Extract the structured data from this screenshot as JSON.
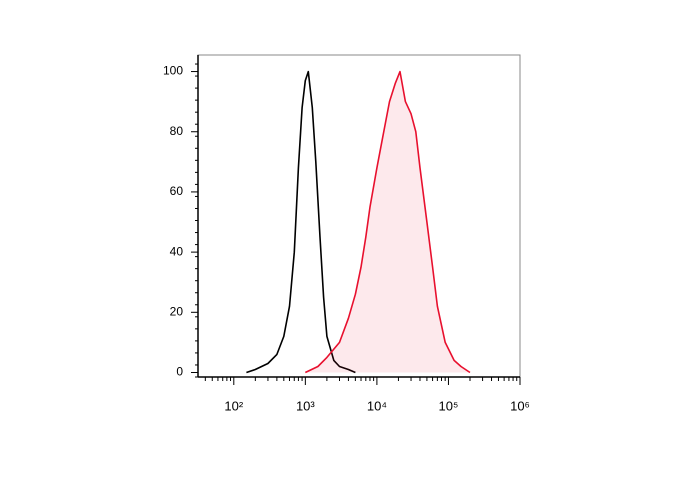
{
  "chart_data": {
    "type": "histogram-overlay",
    "xscale": "log",
    "xlim": [
      31.6,
      1000000
    ],
    "ylim": [
      -1.5,
      105.5
    ],
    "yticks": [
      0,
      20,
      40,
      60,
      80,
      100
    ],
    "xticks": [
      {
        "value": 100,
        "label": "10²"
      },
      {
        "value": 1000,
        "label": "10³"
      },
      {
        "value": 10000,
        "label": "10⁴"
      },
      {
        "value": 100000,
        "label": "10⁵"
      },
      {
        "value": 1000000,
        "label": "10⁶"
      }
    ],
    "series": [
      {
        "color": "#000000",
        "fill": false,
        "x": [
          150,
          200,
          300,
          400,
          500,
          600,
          700,
          800,
          900,
          1000,
          1100,
          1250,
          1400,
          1600,
          1800,
          2000,
          2500,
          3000,
          4000,
          5000
        ],
        "values": [
          0,
          1,
          3,
          6,
          12,
          22,
          40,
          68,
          88,
          97,
          100,
          88,
          70,
          45,
          25,
          12,
          4,
          2,
          1,
          0
        ]
      },
      {
        "color": "#e8102e",
        "fill": true,
        "x": [
          1000,
          1500,
          2000,
          3000,
          4000,
          5000,
          6000,
          7000,
          8000,
          10000,
          12000,
          15000,
          18000,
          21000,
          25000,
          30000,
          35000,
          40000,
          50000,
          60000,
          70000,
          90000,
          120000,
          150000,
          200000
        ],
        "values": [
          0,
          2,
          5,
          10,
          18,
          26,
          35,
          45,
          55,
          68,
          78,
          90,
          96,
          100,
          90,
          86,
          80,
          68,
          50,
          35,
          22,
          10,
          4,
          2,
          0
        ]
      }
    ]
  }
}
